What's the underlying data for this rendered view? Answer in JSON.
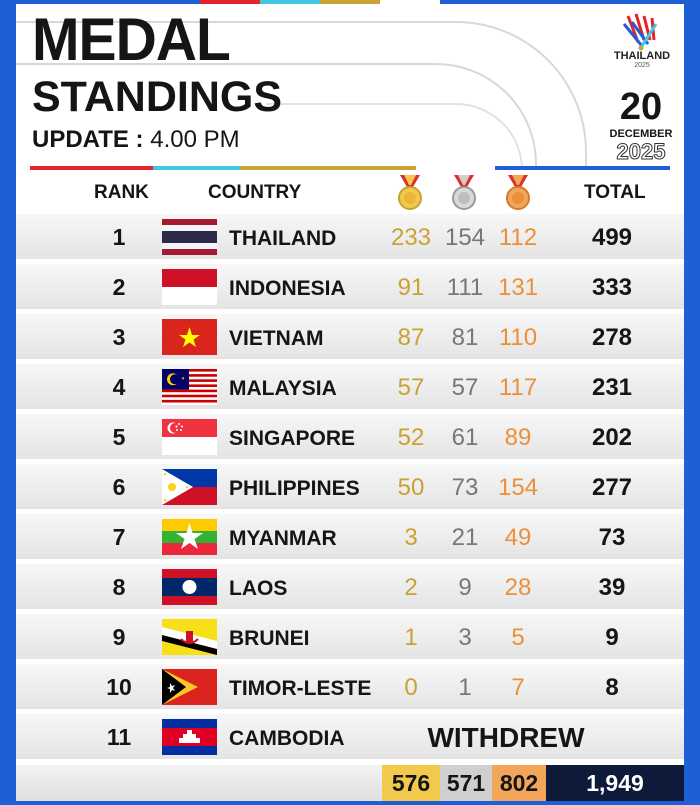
{
  "title_line1": "MEDAL",
  "title_line2": "STANDINGS",
  "update_label": "UPDATE :",
  "update_time": "4.00 PM",
  "event_logo": {
    "name": "THAILAND",
    "year": "2025"
  },
  "date": {
    "day": "20",
    "month": "DECEMBER",
    "year": "2025"
  },
  "colors": {
    "gold": "#c9a233",
    "silver": "#777777",
    "bronze": "#ec8f3b",
    "frame": "#1e5fd6",
    "total_bg": "#0e1a3a"
  },
  "headers": {
    "rank": "RANK",
    "country": "COUNTRY",
    "total": "TOTAL",
    "gold_icon": "gold-medal-icon",
    "silver_icon": "silver-medal-icon",
    "bronze_icon": "bronze-medal-icon"
  },
  "rows": [
    {
      "rank": "1",
      "country": "THAILAND",
      "gold": "233",
      "silver": "154",
      "bronze": "112",
      "total": "499",
      "flag": "thailand-flag-icon"
    },
    {
      "rank": "2",
      "country": "INDONESIA",
      "gold": "91",
      "silver": "111",
      "bronze": "131",
      "total": "333",
      "flag": "indonesia-flag-icon"
    },
    {
      "rank": "3",
      "country": "VIETNAM",
      "gold": "87",
      "silver": "81",
      "bronze": "110",
      "total": "278",
      "flag": "vietnam-flag-icon"
    },
    {
      "rank": "4",
      "country": "MALAYSIA",
      "gold": "57",
      "silver": "57",
      "bronze": "117",
      "total": "231",
      "flag": "malaysia-flag-icon"
    },
    {
      "rank": "5",
      "country": "SINGAPORE",
      "gold": "52",
      "silver": "61",
      "bronze": "89",
      "total": "202",
      "flag": "singapore-flag-icon"
    },
    {
      "rank": "6",
      "country": "PHILIPPINES",
      "gold": "50",
      "silver": "73",
      "bronze": "154",
      "total": "277",
      "flag": "philippines-flag-icon"
    },
    {
      "rank": "7",
      "country": "MYANMAR",
      "gold": "3",
      "silver": "21",
      "bronze": "49",
      "total": "73",
      "flag": "myanmar-flag-icon"
    },
    {
      "rank": "8",
      "country": "LAOS",
      "gold": "2",
      "silver": "9",
      "bronze": "28",
      "total": "39",
      "flag": "laos-flag-icon"
    },
    {
      "rank": "9",
      "country": "BRUNEI",
      "gold": "1",
      "silver": "3",
      "bronze": "5",
      "total": "9",
      "flag": "brunei-flag-icon"
    },
    {
      "rank": "10",
      "country": "TIMOR-LESTE",
      "gold": "0",
      "silver": "1",
      "bronze": "7",
      "total": "8",
      "flag": "timor-leste-flag-icon"
    }
  ],
  "withdrawn": {
    "rank": "11",
    "country": "CAMBODIA",
    "status": "WITHDREW",
    "flag": "cambodia-flag-icon"
  },
  "totals": {
    "gold": "576",
    "silver": "571",
    "bronze": "802",
    "total": "1,949"
  }
}
